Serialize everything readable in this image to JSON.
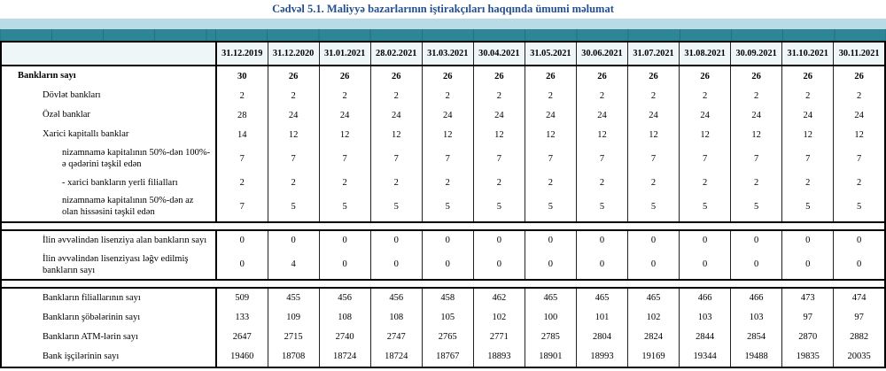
{
  "title": "Cədvəl 5.1. Maliyyə bazarlarının iştirakçıları haqqında ümumi məlumat",
  "colors": {
    "title_text": "#24508f",
    "band_light": "#b9dbe6",
    "band_teal": "#2e8596",
    "header_row_bg": "#eff6f8",
    "separator_bg": "#fbfdfd",
    "border": "#000000"
  },
  "table": {
    "date_columns": [
      "31.12.2019",
      "31.12.2020",
      "31.01.2021",
      "28.02.2021",
      "31.03.2021",
      "30.04.2021",
      "31.05.2021",
      "30.06.2021",
      "31.07.2021",
      "31.08.2021",
      "30.09.2021",
      "31.10.2021",
      "30.11.2021"
    ],
    "sections": [
      {
        "rows": [
          {
            "label": "Bankların sayı",
            "indent": 1,
            "bold": true,
            "values": [
              30,
              26,
              26,
              26,
              26,
              26,
              26,
              26,
              26,
              26,
              26,
              26,
              26
            ]
          },
          {
            "label": "Dövlət bankları",
            "indent": 2,
            "bold": false,
            "values": [
              2,
              2,
              2,
              2,
              2,
              2,
              2,
              2,
              2,
              2,
              2,
              2,
              2
            ]
          },
          {
            "label": "Özəl banklar",
            "indent": 2,
            "bold": false,
            "values": [
              28,
              24,
              24,
              24,
              24,
              24,
              24,
              24,
              24,
              24,
              24,
              24,
              24
            ]
          },
          {
            "label": "Xarici kapitallı banklar",
            "indent": 2,
            "bold": false,
            "values": [
              14,
              12,
              12,
              12,
              12,
              12,
              12,
              12,
              12,
              12,
              12,
              12,
              12
            ]
          },
          {
            "label": "nizamnamə kapitalının 50%-dən 100%-ə qədərini təşkil edən",
            "indent": 3,
            "bold": false,
            "values": [
              7,
              7,
              7,
              7,
              7,
              7,
              7,
              7,
              7,
              7,
              7,
              7,
              7
            ]
          },
          {
            "label": "-  xarici bankların yerli filialları",
            "indent": 3,
            "bold": false,
            "values": [
              2,
              2,
              2,
              2,
              2,
              2,
              2,
              2,
              2,
              2,
              2,
              2,
              2
            ]
          },
          {
            "label": "nizamnamə kapitalının 50%-dən az olan hissəsini  təşkil edən",
            "indent": 3,
            "bold": false,
            "values": [
              7,
              5,
              5,
              5,
              5,
              5,
              5,
              5,
              5,
              5,
              5,
              5,
              5
            ]
          }
        ]
      },
      {
        "rows": [
          {
            "label": "İlin əvvəlindən lisenziya alan bankların sayı",
            "indent": 2,
            "bold": false,
            "values": [
              0,
              0,
              0,
              0,
              0,
              0,
              0,
              0,
              0,
              0,
              0,
              0,
              0
            ]
          },
          {
            "label": "İlin əvvəlindən lisenziyası ləğv edilmiş bankların sayı",
            "indent": 2,
            "bold": false,
            "values": [
              0,
              4,
              0,
              0,
              0,
              0,
              0,
              0,
              0,
              0,
              0,
              0,
              0
            ]
          }
        ]
      },
      {
        "rows": [
          {
            "label": "Bankların filiallarının sayı",
            "indent": 2,
            "bold": false,
            "values": [
              509,
              455,
              456,
              456,
              458,
              462,
              465,
              465,
              465,
              466,
              466,
              473,
              474
            ]
          },
          {
            "label": "Bankların şöbələrinin sayı",
            "indent": 2,
            "bold": false,
            "values": [
              133,
              109,
              108,
              108,
              105,
              102,
              100,
              101,
              102,
              103,
              103,
              97,
              97
            ]
          },
          {
            "label": "Bankların ATM-lərin sayı",
            "indent": 2,
            "bold": false,
            "values": [
              2647,
              2715,
              2740,
              2747,
              2765,
              2771,
              2785,
              2804,
              2824,
              2844,
              2854,
              2870,
              2882
            ]
          },
          {
            "label": "Bank işçilərinin sayı",
            "indent": 2,
            "bold": false,
            "values": [
              19460,
              18708,
              18724,
              18724,
              18767,
              18893,
              18901,
              18993,
              19169,
              19344,
              19488,
              19835,
              20035
            ]
          }
        ]
      }
    ]
  }
}
